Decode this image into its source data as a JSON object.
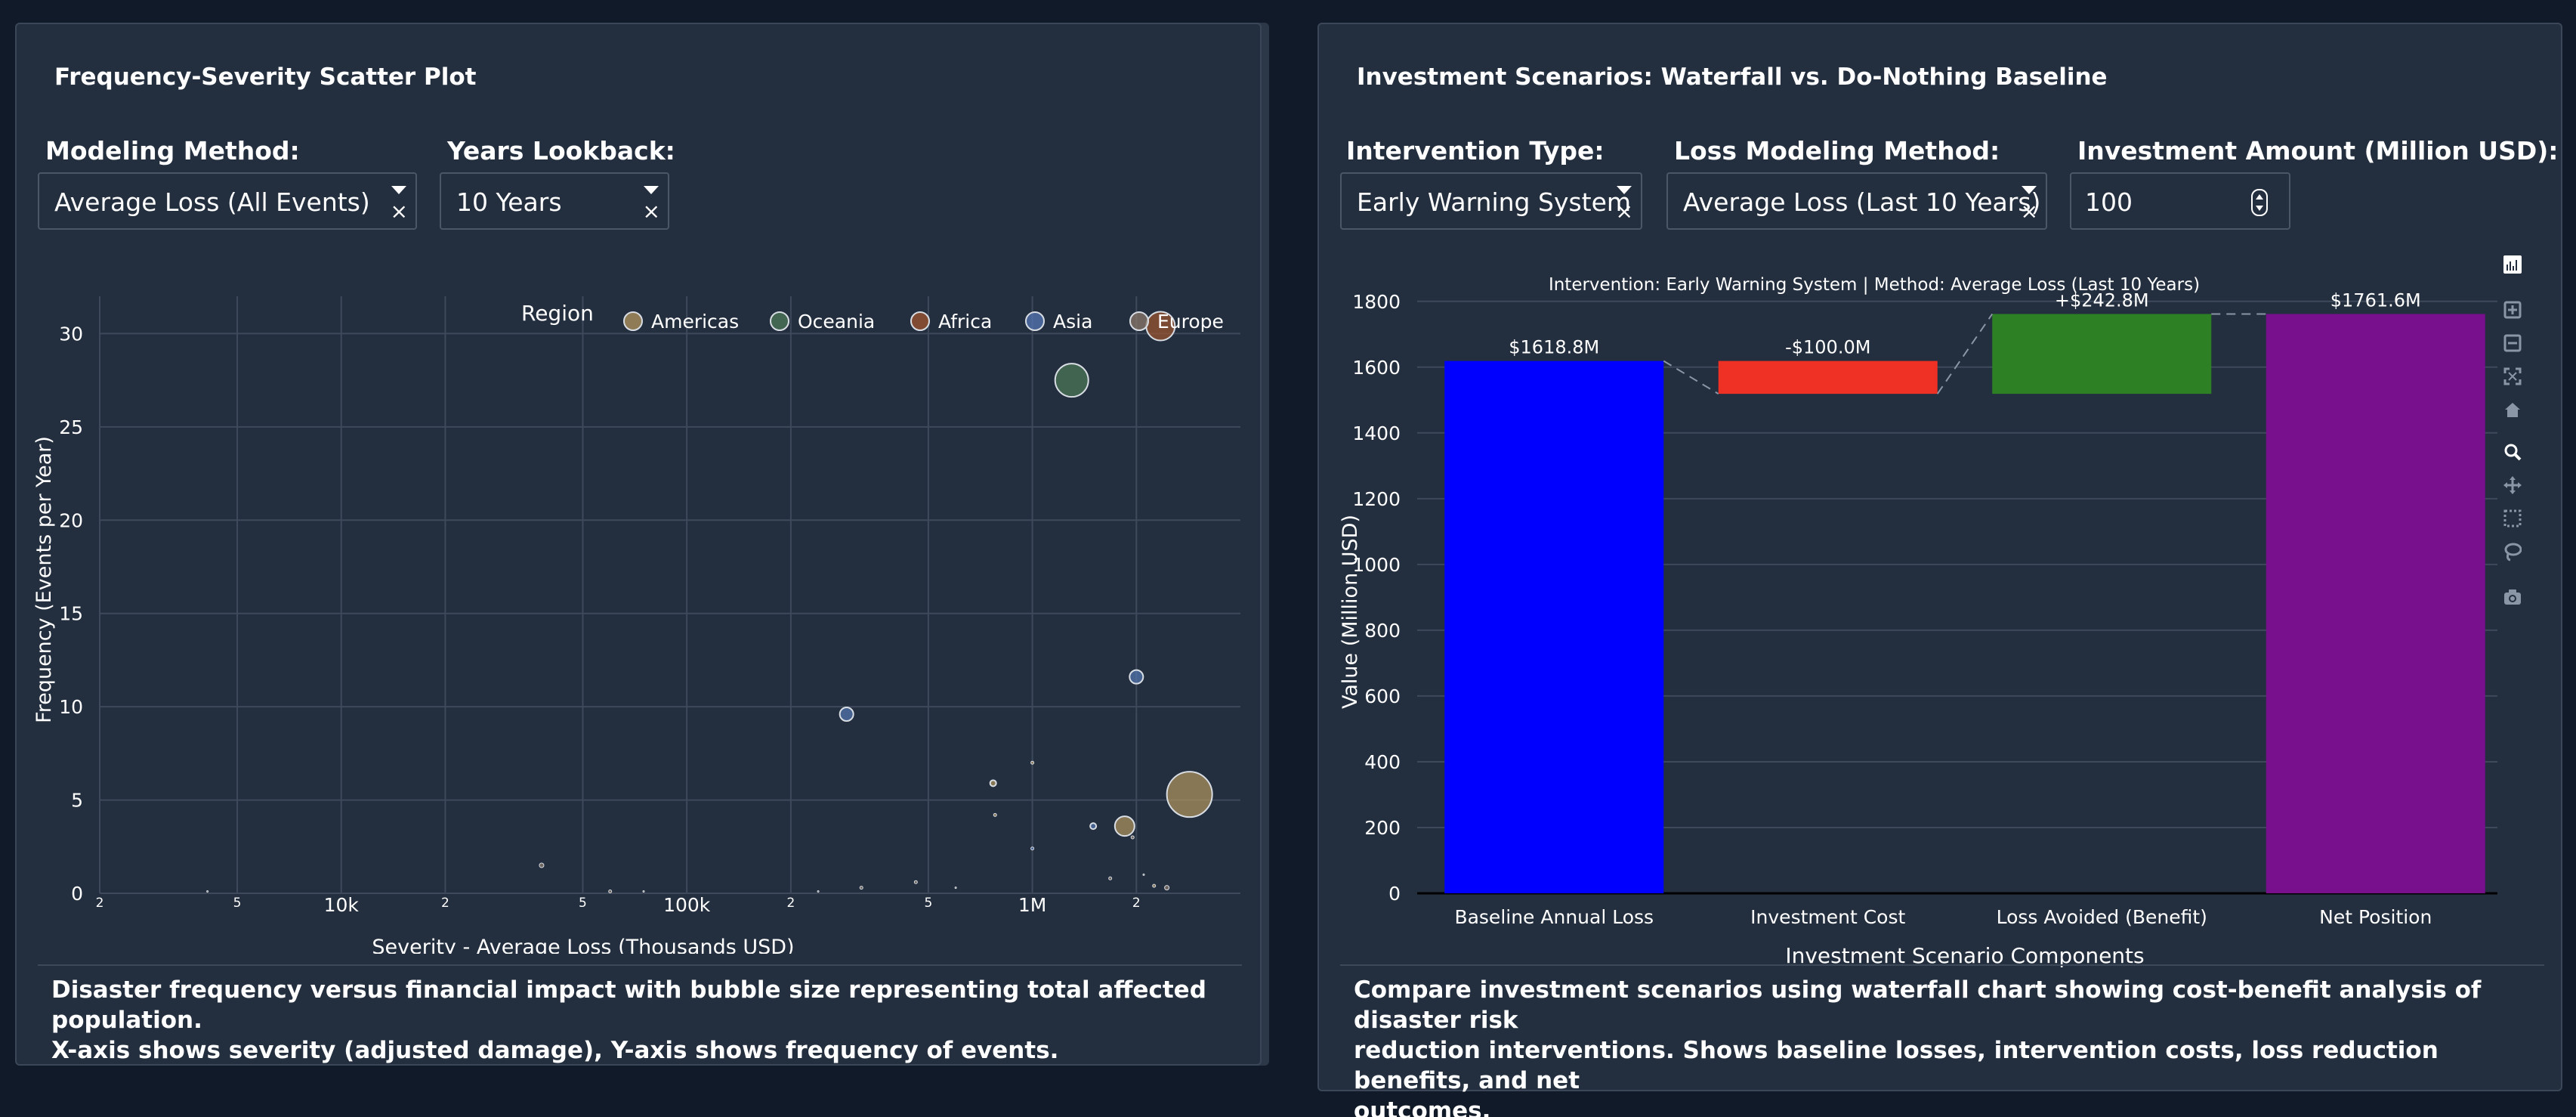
{
  "scatter_panel": {
    "title": "Frequency-Severity Scatter Plot",
    "modeling_method_label": "Modeling Method:",
    "modeling_method_value": "Average Loss (All Events)",
    "years_lookback_label": "Years Lookback:",
    "years_lookback_value": "10 Years",
    "clear_symbol": "×",
    "legend_title": "Region",
    "description_line1": "Disaster frequency versus financial impact with bubble size representing total affected population.",
    "description_line2": "X-axis shows severity (adjusted damage), Y-axis shows frequency of events."
  },
  "waterfall_panel": {
    "title": "Investment Scenarios: Waterfall vs. Do-Nothing Baseline",
    "intervention_label": "Intervention Type:",
    "intervention_value": "Early Warning System",
    "loss_method_label": "Loss Modeling Method:",
    "loss_method_value": "Average Loss (Last 10 Years)",
    "investment_label": "Investment Amount (Million USD):",
    "investment_value": "100",
    "clear_symbol": "×",
    "description_line1": "Compare investment scenarios using waterfall chart showing cost-benefit analysis of disaster risk",
    "description_line2": "reduction interventions. Shows baseline losses, intervention costs, loss reduction benefits, and net",
    "description_line3": "outcomes."
  },
  "modebar_icons": [
    "plotly-logo-icon",
    "zoom-in-icon",
    "zoom-out-icon",
    "autoscale-icon",
    "home-icon",
    "zoom-icon",
    "pan-icon",
    "box-select-icon",
    "lasso-icon",
    "camera-icon"
  ],
  "chart_data": [
    {
      "type": "scatter",
      "xlabel": "Severity - Average Loss (Thousands USD)",
      "ylabel": "Frequency (Events per Year)",
      "x_scale": "log",
      "xlim": [
        2000,
        4000000
      ],
      "ylim": [
        0,
        32
      ],
      "x_ticks": [
        {
          "value": 2000,
          "label": "2"
        },
        {
          "value": 5000,
          "label": "5"
        },
        {
          "value": 10000,
          "label": "10k"
        },
        {
          "value": 20000,
          "label": "2"
        },
        {
          "value": 50000,
          "label": "5"
        },
        {
          "value": 100000,
          "label": "100k"
        },
        {
          "value": 200000,
          "label": "2"
        },
        {
          "value": 500000,
          "label": "5"
        },
        {
          "value": 1000000,
          "label": "1M"
        },
        {
          "value": 2000000,
          "label": "2"
        }
      ],
      "y_ticks": [
        {
          "value": 0,
          "label": "0"
        },
        {
          "value": 5,
          "label": "5"
        },
        {
          "value": 10,
          "label": "10"
        },
        {
          "value": 15,
          "label": "15"
        },
        {
          "value": 20,
          "label": "20"
        },
        {
          "value": 25,
          "label": "25"
        },
        {
          "value": 30,
          "label": "30"
        }
      ],
      "grid": true,
      "legend_title": "Region",
      "legend_position": "top-right",
      "series": [
        {
          "name": "Americas",
          "color": "#b4955f",
          "points": [
            {
              "x": 2850000,
              "y": 5.3,
              "size": 30
            },
            {
              "x": 1850000,
              "y": 3.6,
              "size": 13
            },
            {
              "x": 770000,
              "y": 5.9,
              "size": 4
            },
            {
              "x": 2250000,
              "y": 0.4,
              "size": 2
            },
            {
              "x": 1000000,
              "y": 7.0,
              "size": 2
            },
            {
              "x": 780000,
              "y": 4.2,
              "size": 2
            }
          ]
        },
        {
          "name": "Oceania",
          "color": "#4f7a5a",
          "points": [
            {
              "x": 1300000,
              "y": 27.5,
              "size": 22
            }
          ]
        },
        {
          "name": "Africa",
          "color": "#a0552f",
          "points": [
            {
              "x": 2350000,
              "y": 30.4,
              "size": 19
            }
          ]
        },
        {
          "name": "Asia",
          "color": "#5577b4",
          "points": [
            {
              "x": 2000000,
              "y": 11.6,
              "size": 9
            },
            {
              "x": 290000,
              "y": 9.6,
              "size": 9
            },
            {
              "x": 1500000,
              "y": 3.6,
              "size": 4
            },
            {
              "x": 1000000,
              "y": 2.4,
              "size": 2
            }
          ]
        },
        {
          "name": "Europe",
          "color": "#8b7a6b",
          "points": [
            {
              "x": 38000,
              "y": 1.5,
              "size": 3
            },
            {
              "x": 2450000,
              "y": 0.3,
              "size": 3
            },
            {
              "x": 60000,
              "y": 0.1,
              "size": 2
            },
            {
              "x": 320000,
              "y": 0.3,
              "size": 2
            },
            {
              "x": 460000,
              "y": 0.6,
              "size": 2
            },
            {
              "x": 1680000,
              "y": 0.8,
              "size": 2
            },
            {
              "x": 1950000,
              "y": 3.0,
              "size": 2
            },
            {
              "x": 4100,
              "y": 0.1,
              "size": 1
            },
            {
              "x": 75000,
              "y": 0.1,
              "size": 1
            },
            {
              "x": 240000,
              "y": 0.1,
              "size": 1
            },
            {
              "x": 600000,
              "y": 0.3,
              "size": 1
            },
            {
              "x": 2100000,
              "y": 1.0,
              "size": 1
            }
          ]
        }
      ]
    },
    {
      "type": "bar",
      "subtype": "waterfall",
      "title": "Intervention: Early Warning System | Method: Average Loss (Last 10 Years)",
      "xlabel": "Investment Scenario Components",
      "ylabel": "Value (Million USD)",
      "ylim": [
        0,
        1850
      ],
      "y_ticks": [
        0,
        200,
        400,
        600,
        800,
        1000,
        1200,
        1400,
        1600,
        1800
      ],
      "grid": true,
      "categories": [
        "Baseline Annual Loss",
        "Investment Cost",
        "Loss Avoided (Benefit)",
        "Net Position"
      ],
      "bars": [
        {
          "category": "Baseline Annual Loss",
          "base": 0,
          "value": 1618.8,
          "label": "$1618.8M",
          "color": "#0000ff"
        },
        {
          "category": "Investment Cost",
          "base": 1518.8,
          "value": 100.0,
          "label": "-$100.0M",
          "color": "#ee3124"
        },
        {
          "category": "Loss Avoided (Benefit)",
          "base": 1518.8,
          "value": 242.8,
          "label": "+$242.8M",
          "color": "#2e8024"
        },
        {
          "category": "Net Position",
          "base": 0,
          "value": 1761.6,
          "label": "$1761.6M",
          "color": "#780f8c"
        }
      ]
    }
  ]
}
